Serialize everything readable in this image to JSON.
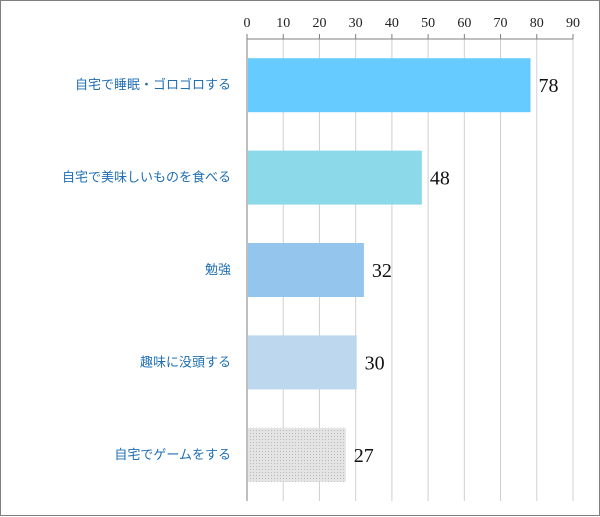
{
  "chart_data": {
    "type": "bar",
    "orientation": "horizontal",
    "categories": [
      "自宅で睡眠・ゴロゴロする",
      "自宅で美味しいものを食べる",
      "勉強",
      "趣味に没頭する",
      "自宅でゲームをする"
    ],
    "values": [
      78,
      48,
      32,
      30,
      27
    ],
    "bar_colors": [
      "#66ccff",
      "#8cd9ea",
      "#94c5ec",
      "#bdd7ee",
      "#d9d9d9"
    ],
    "xlim": [
      0,
      90
    ],
    "xticks": [
      "0",
      "10",
      "20",
      "30",
      "40",
      "50",
      "60",
      "70",
      "80",
      "90"
    ],
    "x_axis_position": "top",
    "grid": true,
    "title": "",
    "xlabel": "",
    "ylabel": ""
  }
}
